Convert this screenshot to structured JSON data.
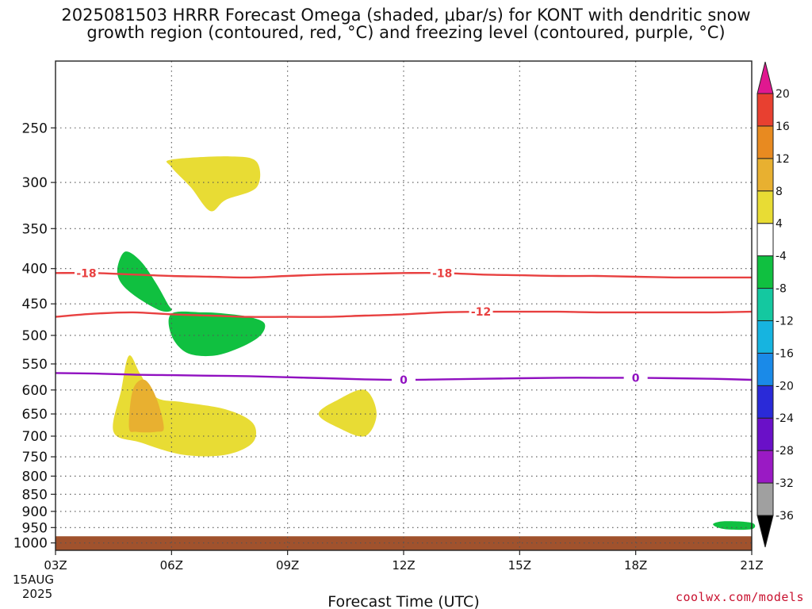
{
  "chart_data": {
    "type": "heatmap",
    "title": "2025081503 HRRR Forecast Omega (shaded, μbar/s) for KONT with dendritic snow\ngrowth region (contoured, red, °C) and freezing level (contoured, purple, °C)",
    "xlabel": "Forecast Time (UTC)",
    "ylabel": "",
    "x_ticks": [
      "03Z",
      "06Z",
      "09Z",
      "12Z",
      "15Z",
      "18Z",
      "21Z"
    ],
    "x_tick_hours": [
      3,
      6,
      9,
      12,
      15,
      18,
      21
    ],
    "x_date_label": [
      "15AUG",
      "2025"
    ],
    "xlim": [
      3,
      21
    ],
    "y_ticks": [
      250,
      300,
      350,
      400,
      450,
      500,
      550,
      600,
      650,
      700,
      750,
      800,
      850,
      900,
      950,
      1000
    ],
    "ylim": [
      1025,
      200
    ],
    "y_scale": "log-pressure",
    "grid": true,
    "colorbar": {
      "levels": [
        -36,
        -32,
        -28,
        -24,
        -20,
        -16,
        -12,
        -8,
        -4,
        4,
        8,
        12,
        16,
        20
      ],
      "colors": [
        "#000000",
        "#a0a0a0",
        "#9a1ac4",
        "#6a10c8",
        "#2a2ad8",
        "#1a8ae8",
        "#16b4e0",
        "#14c8a0",
        "#10c040",
        "#ffffff",
        "#e8dc34",
        "#e8b030",
        "#e88a20",
        "#e84030",
        "#e01890"
      ]
    },
    "omega_regions": [
      {
        "value": 6,
        "color": "#e8dc34",
        "points": [
          [
            6.0,
            278
          ],
          [
            7.5,
            275
          ],
          [
            8.2,
            280
          ],
          [
            8.2,
            305
          ],
          [
            7.4,
            318
          ],
          [
            7.0,
            330
          ],
          [
            6.5,
            305
          ],
          [
            6.0,
            285
          ]
        ]
      },
      {
        "value": 6,
        "color": "#e8dc34",
        "points": [
          [
            9.8,
            650
          ],
          [
            10.3,
            620
          ],
          [
            11.0,
            600
          ],
          [
            11.3,
            650
          ],
          [
            11.0,
            700
          ],
          [
            10.3,
            680
          ]
        ]
      },
      {
        "value": 6,
        "color": "#e8dc34",
        "points": [
          [
            4.5,
            690
          ],
          [
            4.7,
            600
          ],
          [
            4.9,
            535
          ],
          [
            5.2,
            570
          ],
          [
            5.6,
            615
          ],
          [
            6.3,
            625
          ],
          [
            7.4,
            640
          ],
          [
            8.1,
            670
          ],
          [
            8.1,
            715
          ],
          [
            7.4,
            745
          ],
          [
            6.3,
            745
          ],
          [
            5.2,
            715
          ]
        ]
      },
      {
        "value": 10,
        "color": "#e8b030",
        "points": [
          [
            4.9,
            680
          ],
          [
            5.0,
            600
          ],
          [
            5.3,
            580
          ],
          [
            5.6,
            615
          ],
          [
            5.8,
            680
          ],
          [
            5.6,
            690
          ],
          [
            5.1,
            690
          ]
        ]
      },
      {
        "value": -6,
        "color": "#10c040",
        "points": [
          [
            4.6,
            400
          ],
          [
            4.8,
            378
          ],
          [
            5.2,
            390
          ],
          [
            5.6,
            420
          ],
          [
            5.9,
            450
          ],
          [
            6.0,
            460
          ],
          [
            5.7,
            460
          ],
          [
            5.1,
            440
          ],
          [
            4.7,
            420
          ]
        ]
      },
      {
        "value": -6,
        "color": "#10c040",
        "points": [
          [
            6.0,
            465
          ],
          [
            6.8,
            463
          ],
          [
            7.4,
            465
          ],
          [
            8.0,
            470
          ],
          [
            8.4,
            480
          ],
          [
            8.3,
            500
          ],
          [
            7.8,
            520
          ],
          [
            7.1,
            535
          ],
          [
            6.4,
            530
          ],
          [
            6.0,
            500
          ]
        ]
      },
      {
        "value": -6,
        "color": "#10c040",
        "points": [
          [
            20.0,
            940
          ],
          [
            20.3,
            930
          ],
          [
            21.0,
            935
          ],
          [
            21.0,
            955
          ],
          [
            20.3,
            955
          ]
        ]
      }
    ],
    "contours": [
      {
        "name": "-18",
        "color": "#e84040",
        "labels": [
          "-18",
          "-18"
        ],
        "label_hours": [
          3.8,
          13.0
        ],
        "x": [
          3,
          4,
          5,
          6,
          7,
          8,
          9,
          10,
          11,
          12,
          13,
          14,
          15,
          16,
          17,
          18,
          19,
          20,
          21
        ],
        "y": [
          406,
          406,
          408,
          410,
          411,
          412,
          410,
          408,
          407,
          406,
          406,
          408,
          409,
          410,
          410,
          411,
          412,
          412,
          412
        ]
      },
      {
        "name": "-12",
        "color": "#e84040",
        "labels": [
          "-12"
        ],
        "label_hours": [
          14.0
        ],
        "x": [
          3,
          4,
          5,
          6,
          7,
          8,
          9,
          10,
          11,
          12,
          13,
          14,
          15,
          16,
          17,
          18,
          19,
          20,
          21
        ],
        "y": [
          470,
          465,
          463,
          466,
          468,
          470,
          470,
          470,
          468,
          466,
          463,
          462,
          462,
          462,
          463,
          463,
          463,
          463,
          462
        ]
      },
      {
        "name": "0",
        "color": "#9010c0",
        "labels": [
          "0",
          "0"
        ],
        "label_hours": [
          12.0,
          18.0
        ],
        "x": [
          3,
          4,
          5,
          6,
          7,
          8,
          9,
          10,
          11,
          12,
          13,
          14,
          15,
          16,
          17,
          18,
          19,
          20,
          21
        ],
        "y": [
          567,
          568,
          570,
          571,
          572,
          573,
          575,
          577,
          579,
          580,
          579,
          578,
          577,
          576,
          576,
          576,
          577,
          578,
          580
        ]
      }
    ],
    "ground": {
      "color": "#a0522d",
      "top_pressure": 978
    }
  },
  "credit": "coolwx.com/models"
}
